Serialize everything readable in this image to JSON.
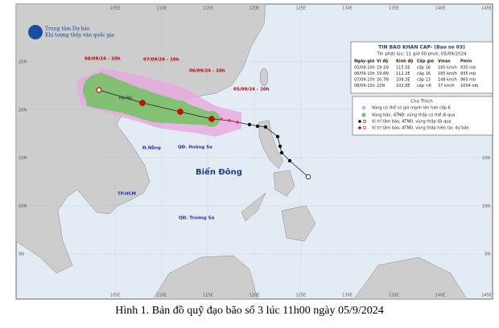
{
  "header": {
    "agency": "Trung tâm Dự báo",
    "agency_sub": "Khí tượng thủy văn quốc gia"
  },
  "map": {
    "lon_labels": [
      "105E",
      "110E",
      "115E",
      "120E",
      "125E",
      "130E",
      "135E",
      "140E",
      "145E"
    ],
    "lat_labels": [
      "25N",
      "20N",
      "15N",
      "10N",
      "5N"
    ],
    "forecast_labels": [
      "08/09/24 - 10h",
      "07/09/24 - 10h",
      "06/09/24 - 10h",
      "05/09/24 - 10h"
    ],
    "places": [
      "Hà Nội",
      "Đ.Nẵng",
      "QĐ. Hoàng Sa",
      "Biển Đông",
      "TP.HCM",
      "QĐ. Trường Sa"
    ]
  },
  "bulletin": {
    "title": "TIN BAO KHAN CAP- (Bao so 03)",
    "issued": "Tin phát lúc: 11 giờ 00 phút, 05/09/2024",
    "columns": [
      "Ngày-giờ",
      "Vĩ độ",
      "Kinh độ",
      "Cấp gió",
      "Vmax",
      "Pmin"
    ],
    "rows": [
      [
        "05/09-10h",
        "19.1N",
        "115.5E",
        "cấp 16",
        "185 km/h",
        "935 mb"
      ],
      [
        "06/09-10h",
        "19.6N",
        "112.2E",
        "cấp 16",
        "185 km/h",
        "935 mb"
      ],
      [
        "07/09-10h",
        "20.7N",
        "108.3E",
        "cấp 13",
        "148 km/h",
        "960 mb"
      ],
      [
        "08/09-10h",
        "22N",
        "103.8E",
        "cấp <6",
        "37 km/h",
        "1004 mb"
      ]
    ]
  },
  "legend": {
    "title": "Chú Thích",
    "items": [
      "Vùng có thể có gió mạnh lên hơn cấp 6",
      "Vùng bão, ATNĐ, vùng thấp có thể đi qua",
      "Vị trí tâm bão, ATNĐ, vùng thấp đã qua",
      "Vị trí tâm bão, ATNĐ, vùng thấp hiện tại, dự báo"
    ]
  },
  "caption": "Hình 1. Bản đồ quỹ đạo bão số 3 lúc 11h00 ngày 05/9/2024"
}
